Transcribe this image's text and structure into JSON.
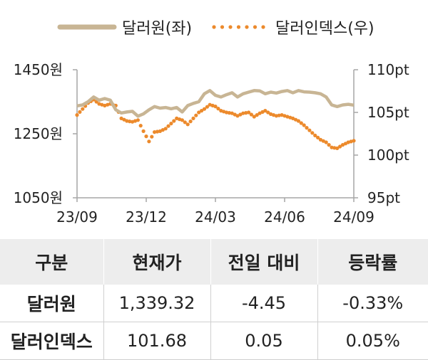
{
  "chart_data": {
    "type": "line",
    "x_ticks": [
      "23/09",
      "23/12",
      "24/03",
      "24/06",
      "24/09"
    ],
    "y_left": {
      "ticks": [
        "1450원",
        "1250원",
        "1050원"
      ],
      "lim": [
        1050,
        1450
      ]
    },
    "y_right": {
      "ticks": [
        "110pt",
        "105pt",
        "100pt",
        "95pt"
      ],
      "lim": [
        95,
        110
      ]
    },
    "grid": false,
    "legend_position": "top",
    "series": [
      {
        "name": "달러원(좌)",
        "axis": "left",
        "style": "solid",
        "color": "#c8b594",
        "t": [
          0,
          0.02,
          0.04,
          0.06,
          0.08,
          0.1,
          0.12,
          0.14,
          0.16,
          0.18,
          0.2,
          0.22,
          0.24,
          0.26,
          0.28,
          0.3,
          0.32,
          0.34,
          0.36,
          0.38,
          0.4,
          0.42,
          0.44,
          0.46,
          0.48,
          0.5,
          0.52,
          0.54,
          0.56,
          0.58,
          0.6,
          0.62,
          0.64,
          0.66,
          0.68,
          0.7,
          0.72,
          0.74,
          0.76,
          0.78,
          0.8,
          0.82,
          0.84,
          0.86,
          0.88,
          0.9,
          0.92,
          0.94,
          0.96,
          0.98,
          1
        ],
        "values": [
          1337,
          1340,
          1350,
          1365,
          1355,
          1360,
          1355,
          1325,
          1315,
          1318,
          1320,
          1305,
          1312,
          1325,
          1335,
          1330,
          1332,
          1328,
          1332,
          1318,
          1338,
          1345,
          1350,
          1375,
          1385,
          1370,
          1365,
          1372,
          1378,
          1365,
          1375,
          1380,
          1385,
          1384,
          1375,
          1380,
          1377,
          1382,
          1385,
          1378,
          1385,
          1381,
          1380,
          1378,
          1375,
          1365,
          1340,
          1335,
          1340,
          1342,
          1339.32
        ]
      },
      {
        "name": "달러인덱스(우)",
        "axis": "right",
        "style": "dotted",
        "color": "#ec8a2c",
        "t": [
          0,
          0.02,
          0.04,
          0.06,
          0.08,
          0.1,
          0.12,
          0.14,
          0.16,
          0.18,
          0.2,
          0.22,
          0.24,
          0.26,
          0.28,
          0.3,
          0.32,
          0.34,
          0.36,
          0.38,
          0.4,
          0.42,
          0.44,
          0.46,
          0.48,
          0.5,
          0.52,
          0.54,
          0.56,
          0.58,
          0.6,
          0.62,
          0.64,
          0.66,
          0.68,
          0.7,
          0.72,
          0.74,
          0.76,
          0.78,
          0.8,
          0.82,
          0.84,
          0.86,
          0.88,
          0.9,
          0.92,
          0.94,
          0.96,
          0.98,
          1
        ],
        "values": [
          104.7,
          105.4,
          106.1,
          106.5,
          106.0,
          105.8,
          106.0,
          105.8,
          104.3,
          104.0,
          103.9,
          104.1,
          102.8,
          101.6,
          102.7,
          102.8,
          103.1,
          103.7,
          104.3,
          104.1,
          103.6,
          104.3,
          105.0,
          105.4,
          105.9,
          105.7,
          105.2,
          105.0,
          104.9,
          104.6,
          104.9,
          105.0,
          104.5,
          104.9,
          105.2,
          104.8,
          104.6,
          104.7,
          104.5,
          104.3,
          104.0,
          103.5,
          102.9,
          102.3,
          101.8,
          101.5,
          100.9,
          100.8,
          101.2,
          101.5,
          101.68
        ]
      }
    ]
  },
  "table": {
    "headers": [
      "구분",
      "현재가",
      "전일 대비",
      "등락률"
    ],
    "rows": [
      {
        "name": "달러원",
        "price": "1,339.32",
        "change": "-4.45",
        "rate": "-0.33%"
      },
      {
        "name": "달러인덱스",
        "price": "101.68",
        "change": "0.05",
        "rate": "0.05%"
      }
    ]
  }
}
